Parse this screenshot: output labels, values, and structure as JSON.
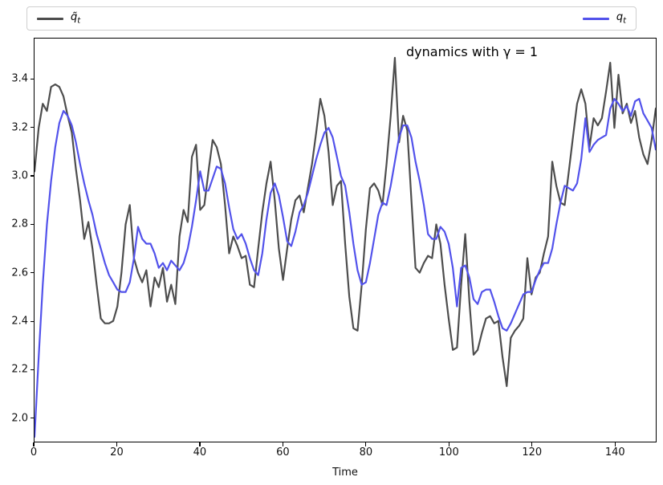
{
  "legend": {
    "entries": [
      {
        "base": "q̃",
        "sub": "t",
        "color": "#4d4d4d"
      },
      {
        "base": "q",
        "sub": "t",
        "color": "#5252eb"
      }
    ],
    "position": "top outside axes, expanded full-width, 2 columns"
  },
  "chart_data": {
    "type": "line",
    "title": "",
    "annotation": "dynamics with γ = 1",
    "xlabel": "Time",
    "ylabel": "",
    "xlim": [
      0,
      150
    ],
    "ylim": [
      1.9,
      3.57
    ],
    "x_ticks": [
      0,
      20,
      40,
      60,
      80,
      100,
      120,
      140
    ],
    "y_ticks": [
      2.0,
      2.2,
      2.4,
      2.6,
      2.8,
      3.0,
      3.2,
      3.4
    ],
    "grid": false,
    "x_start": 0,
    "x_step": 1,
    "n_points": 151,
    "series": [
      {
        "name": "q̃_t",
        "color": "#4d4d4d",
        "line_width": 2.2,
        "values": [
          3.02,
          3.2,
          3.3,
          3.27,
          3.37,
          3.38,
          3.37,
          3.33,
          3.25,
          3.18,
          3.03,
          2.9,
          2.74,
          2.81,
          2.7,
          2.55,
          2.41,
          2.39,
          2.39,
          2.4,
          2.46,
          2.6,
          2.8,
          2.88,
          2.66,
          2.6,
          2.56,
          2.61,
          2.46,
          2.58,
          2.54,
          2.62,
          2.48,
          2.55,
          2.47,
          2.75,
          2.86,
          2.81,
          3.08,
          3.13,
          2.86,
          2.88,
          3.02,
          3.15,
          3.12,
          3.05,
          2.88,
          2.68,
          2.75,
          2.71,
          2.66,
          2.67,
          2.55,
          2.54,
          2.7,
          2.85,
          2.97,
          3.06,
          2.9,
          2.7,
          2.57,
          2.7,
          2.82,
          2.9,
          2.92,
          2.85,
          2.95,
          3.05,
          3.18,
          3.32,
          3.25,
          3.1,
          2.88,
          2.96,
          2.98,
          2.72,
          2.5,
          2.37,
          2.36,
          2.55,
          2.78,
          2.95,
          2.97,
          2.94,
          2.88,
          3.05,
          3.25,
          3.49,
          3.14,
          3.25,
          3.19,
          2.9,
          2.62,
          2.6,
          2.64,
          2.67,
          2.66,
          2.8,
          2.72,
          2.55,
          2.41,
          2.28,
          2.29,
          2.55,
          2.76,
          2.48,
          2.26,
          2.28,
          2.35,
          2.41,
          2.42,
          2.39,
          2.4,
          2.25,
          2.13,
          2.33,
          2.36,
          2.38,
          2.41,
          2.66,
          2.51,
          2.58,
          2.6,
          2.68,
          2.75,
          3.06,
          2.96,
          2.89,
          2.88,
          3.02,
          3.16,
          3.3,
          3.36,
          3.3,
          3.12,
          3.24,
          3.21,
          3.24,
          3.35,
          3.47,
          3.2,
          3.42,
          3.26,
          3.3,
          3.22,
          3.27,
          3.16,
          3.09,
          3.05,
          3.15,
          3.28
        ]
      },
      {
        "name": "q_t",
        "color": "#5252eb",
        "line_width": 2.2,
        "values": [
          1.92,
          2.25,
          2.55,
          2.8,
          2.98,
          3.12,
          3.22,
          3.27,
          3.25,
          3.21,
          3.14,
          3.05,
          2.97,
          2.9,
          2.84,
          2.76,
          2.7,
          2.64,
          2.59,
          2.56,
          2.53,
          2.52,
          2.52,
          2.56,
          2.66,
          2.79,
          2.74,
          2.72,
          2.72,
          2.68,
          2.62,
          2.64,
          2.61,
          2.65,
          2.63,
          2.61,
          2.64,
          2.7,
          2.79,
          2.9,
          3.02,
          2.94,
          2.94,
          2.99,
          3.04,
          3.03,
          2.97,
          2.87,
          2.78,
          2.74,
          2.76,
          2.72,
          2.66,
          2.61,
          2.59,
          2.68,
          2.82,
          2.93,
          2.97,
          2.92,
          2.83,
          2.73,
          2.71,
          2.77,
          2.85,
          2.88,
          2.93,
          3.0,
          3.07,
          3.13,
          3.18,
          3.2,
          3.16,
          3.08,
          3.0,
          2.96,
          2.85,
          2.72,
          2.61,
          2.55,
          2.56,
          2.64,
          2.74,
          2.84,
          2.89,
          2.88,
          2.96,
          3.06,
          3.16,
          3.21,
          3.21,
          3.16,
          3.06,
          2.98,
          2.88,
          2.76,
          2.74,
          2.74,
          2.79,
          2.77,
          2.72,
          2.62,
          2.46,
          2.62,
          2.63,
          2.58,
          2.49,
          2.47,
          2.52,
          2.53,
          2.53,
          2.48,
          2.42,
          2.37,
          2.36,
          2.39,
          2.43,
          2.47,
          2.51,
          2.52,
          2.52,
          2.57,
          2.61,
          2.64,
          2.64,
          2.7,
          2.8,
          2.89,
          2.96,
          2.95,
          2.94,
          2.97,
          3.07,
          3.24,
          3.1,
          3.13,
          3.15,
          3.16,
          3.17,
          3.28,
          3.32,
          3.3,
          3.27,
          3.29,
          3.25,
          3.31,
          3.32,
          3.26,
          3.23,
          3.2,
          3.11
        ]
      }
    ]
  }
}
